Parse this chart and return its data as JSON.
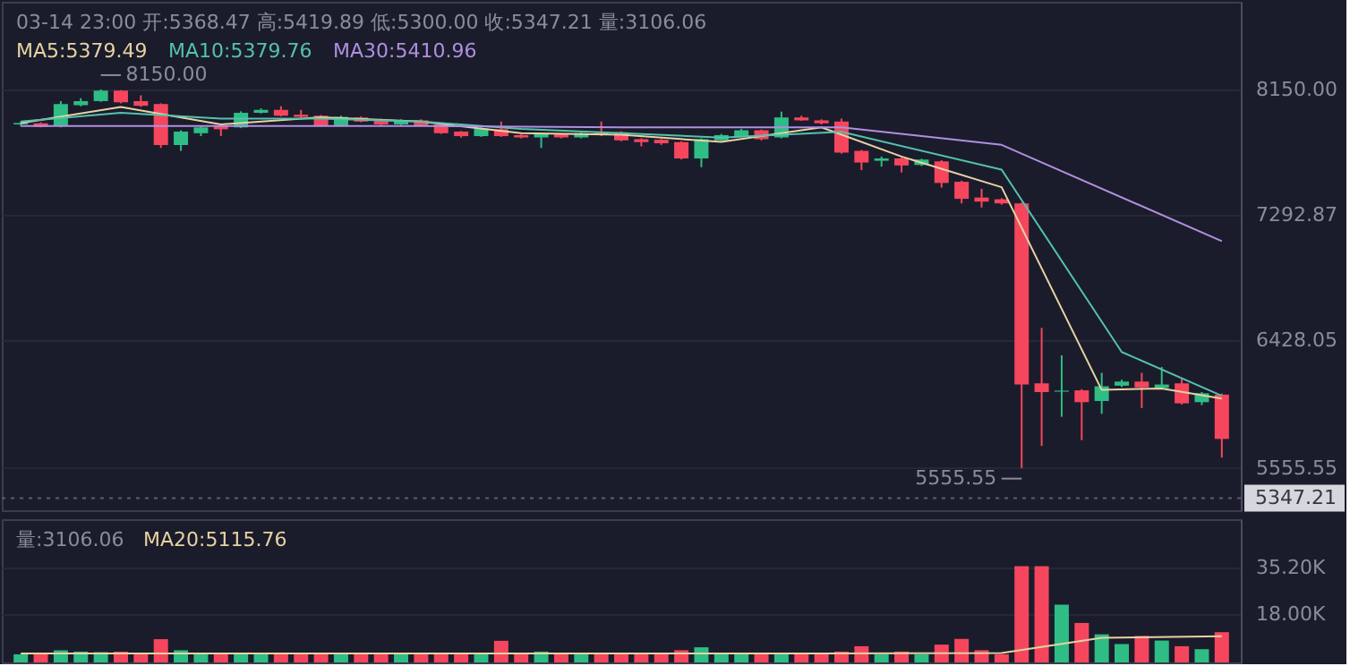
{
  "chart_data": [
    {
      "type": "candlestick",
      "categories": [
        null,
        null,
        null,
        null,
        null,
        null,
        null,
        null,
        null,
        null,
        null,
        null,
        null,
        null,
        null,
        null,
        null,
        null,
        null,
        null,
        null,
        null,
        null,
        null,
        null,
        null,
        null,
        null,
        null,
        null,
        null,
        null,
        null,
        null,
        null,
        null,
        null,
        null,
        null,
        null,
        null,
        null,
        null,
        null,
        null,
        null,
        null,
        null,
        null,
        null,
        null,
        null,
        null,
        null,
        null,
        null,
        null,
        null,
        null,
        null,
        null
      ],
      "ohlc": [
        [
          7910,
          7930,
          7900,
          7920
        ],
        [
          7918,
          7925,
          7890,
          7894
        ],
        [
          7898,
          8070,
          7890,
          8050
        ],
        [
          8042,
          8090,
          8035,
          8070
        ],
        [
          8070,
          8150,
          8065,
          8142
        ],
        [
          8142,
          8145,
          8055,
          8062
        ],
        [
          8070,
          8110,
          8030,
          8038
        ],
        [
          8050,
          8055,
          7749,
          7769
        ],
        [
          7769,
          7870,
          7729,
          7861
        ],
        [
          7850,
          7900,
          7830,
          7890
        ],
        [
          7900,
          7910,
          7830,
          7877
        ],
        [
          7890,
          8000,
          7885,
          7990
        ],
        [
          7990,
          8020,
          7985,
          8010
        ],
        [
          8010,
          8035,
          7965,
          7970
        ],
        [
          7977,
          8010,
          7955,
          7962
        ],
        [
          7970,
          7975,
          7895,
          7900
        ],
        [
          7900,
          7970,
          7895,
          7962
        ],
        [
          7958,
          7965,
          7925,
          7930
        ],
        [
          7942,
          7950,
          7905,
          7910
        ],
        [
          7910,
          7945,
          7905,
          7938
        ],
        [
          7938,
          7945,
          7895,
          7902
        ],
        [
          7910,
          7915,
          7845,
          7850
        ],
        [
          7861,
          7865,
          7820,
          7830
        ],
        [
          7830,
          7890,
          7825,
          7882
        ],
        [
          7877,
          7930,
          7825,
          7830
        ],
        [
          7837,
          7842,
          7815,
          7821
        ],
        [
          7821,
          7850,
          7749,
          7845
        ],
        [
          7845,
          7850,
          7815,
          7821
        ],
        [
          7821,
          7855,
          7815,
          7850
        ],
        [
          7853,
          7930,
          7830,
          7837
        ],
        [
          7857,
          7862,
          7795,
          7801
        ],
        [
          7809,
          7815,
          7760,
          7789
        ],
        [
          7805,
          7810,
          7770,
          7781
        ],
        [
          7789,
          7795,
          7670,
          7677
        ],
        [
          7677,
          7815,
          7617,
          7809
        ],
        [
          7801,
          7845,
          7795,
          7837
        ],
        [
          7830,
          7880,
          7825,
          7870
        ],
        [
          7870,
          7875,
          7800,
          7809
        ],
        [
          7821,
          7998,
          7815,
          7958
        ],
        [
          7958,
          7970,
          7935,
          7938
        ],
        [
          7938,
          7945,
          7910,
          7918
        ],
        [
          7930,
          7950,
          7710,
          7717
        ],
        [
          7729,
          7735,
          7597,
          7649
        ],
        [
          7661,
          7690,
          7621,
          7677
        ],
        [
          7677,
          7685,
          7581,
          7629
        ],
        [
          7633,
          7675,
          7625,
          7669
        ],
        [
          7657,
          7665,
          7477,
          7509
        ],
        [
          7517,
          7525,
          7369,
          7400
        ],
        [
          7409,
          7469,
          7341,
          7381
        ],
        [
          7397,
          7405,
          7360,
          7369
        ],
        [
          7369,
          7375,
          5555.55,
          6127
        ],
        [
          6135,
          6515,
          5706,
          6075
        ],
        [
          6078,
          6327,
          5906,
          6085
        ],
        [
          6087,
          6095,
          5746,
          6006
        ],
        [
          6014,
          6207,
          5926,
          6115
        ],
        [
          6119,
          6160,
          6110,
          6147
        ],
        [
          6147,
          6207,
          5966,
          6107
        ],
        [
          6103,
          6247,
          6095,
          6127
        ],
        [
          6135,
          6167,
          5990,
          5998
        ],
        [
          6006,
          6075,
          5986,
          6067
        ],
        [
          6058,
          6065,
          5626,
          5754
        ]
      ],
      "colors": [
        "#2ebd85",
        "#f6465d",
        "#2ebd85",
        "#2ebd85",
        "#2ebd85",
        "#f6465d",
        "#f6465d",
        "#f6465d",
        "#2ebd85",
        "#2ebd85",
        "#f6465d",
        "#2ebd85",
        "#2ebd85",
        "#f6465d",
        "#f6465d",
        "#f6465d",
        "#2ebd85",
        "#f6465d",
        "#f6465d",
        "#2ebd85",
        "#f6465d",
        "#f6465d",
        "#f6465d",
        "#2ebd85",
        "#f6465d",
        "#f6465d",
        "#2ebd85",
        "#f6465d",
        "#2ebd85",
        "#f6465d",
        "#f6465d",
        "#f6465d",
        "#f6465d",
        "#f6465d",
        "#2ebd85",
        "#2ebd85",
        "#2ebd85",
        "#f6465d",
        "#2ebd85",
        "#f6465d",
        "#f6465d",
        "#f6465d",
        "#f6465d",
        "#2ebd85",
        "#f6465d",
        "#2ebd85",
        "#f6465d",
        "#f6465d",
        "#f6465d",
        "#f6465d",
        "#f6465d",
        "#f6465d",
        "#2ebd85",
        "#f6465d",
        "#2ebd85",
        "#2ebd85",
        "#f6465d",
        "#2ebd85",
        "#f6465d",
        "#2ebd85",
        "#f6465d"
      ],
      "series": [
        {
          "name": "MA5:5379.49",
          "type": "line",
          "color": "#e6d3a3",
          "values": [
            7920,
            null,
            null,
            null,
            null,
            8030,
            null,
            null,
            null,
            null,
            7910,
            null,
            null,
            null,
            null,
            7960,
            null,
            null,
            null,
            null,
            7930,
            null,
            null,
            null,
            null,
            7850,
            null,
            null,
            null,
            null,
            7840,
            null,
            null,
            null,
            null,
            7790,
            null,
            null,
            null,
            null,
            7890,
            null,
            null,
            null,
            7690,
            null,
            null,
            null,
            null,
            7480,
            null,
            null,
            null,
            null,
            6090,
            null,
            null,
            6100,
            null,
            null,
            6030
          ]
        },
        {
          "name": "MA10:5379.76",
          "type": "line",
          "color": "#53c2ad",
          "values": [
            7930,
            null,
            null,
            null,
            null,
            7990,
            null,
            null,
            null,
            null,
            7950,
            null,
            null,
            null,
            null,
            7950,
            null,
            null,
            null,
            null,
            7930,
            null,
            null,
            null,
            null,
            7880,
            null,
            null,
            null,
            null,
            7850,
            null,
            null,
            null,
            null,
            7820,
            null,
            null,
            null,
            null,
            null,
            7860,
            null,
            null,
            null,
            null,
            null,
            null,
            null,
            7600,
            null,
            null,
            null,
            null,
            null,
            6350,
            null,
            null,
            null,
            null,
            6050
          ]
        },
        {
          "name": "MA30:5410.96",
          "type": "line",
          "color": "#b08fe0",
          "values": [
            7900,
            null,
            null,
            null,
            null,
            null,
            null,
            null,
            null,
            null,
            7900,
            null,
            null,
            null,
            null,
            null,
            null,
            null,
            null,
            null,
            7900,
            null,
            null,
            null,
            null,
            null,
            null,
            null,
            null,
            null,
            7890,
            null,
            null,
            null,
            null,
            null,
            null,
            null,
            null,
            null,
            null,
            7890,
            null,
            null,
            null,
            null,
            null,
            null,
            null,
            7770,
            null,
            null,
            null,
            null,
            null,
            null,
            null,
            null,
            null,
            null,
            7110
          ]
        }
      ],
      "ylim": [
        5265,
        8751
      ],
      "yticks": [
        {
          "value": 8150,
          "label": "8150.00"
        },
        {
          "value": 7292.87,
          "label": "7292.87"
        },
        {
          "value": 6428.05,
          "label": "6428.05"
        },
        {
          "value": 5555.55,
          "label": "5555.55"
        }
      ],
      "grid": "y",
      "annotations": [
        "03-14 23:00   开:5368.47   高:5419.89   低:5300.00   收:5347.21   量:3106.06",
        "8150.00",
        "5555.55"
      ],
      "ref_lines": [
        {
          "axis": "y",
          "value": 5347.21,
          "label": "5347.21"
        }
      ]
    },
    {
      "type": "bar",
      "categories": [
        null,
        null,
        null,
        null,
        null,
        null,
        null,
        null,
        null,
        null,
        null,
        null,
        null,
        null,
        null,
        null,
        null,
        null,
        null,
        null,
        null,
        null,
        null,
        null,
        null,
        null,
        null,
        null,
        null,
        null,
        null,
        null,
        null,
        null,
        null,
        null,
        null,
        null,
        null,
        null,
        null,
        null,
        null,
        null,
        null,
        null,
        null,
        null,
        null,
        null,
        null,
        null,
        null,
        null,
        null,
        null,
        null,
        null,
        null,
        null,
        null
      ],
      "values": [
        3000,
        3000,
        4500,
        4000,
        3800,
        4000,
        3000,
        8600,
        4500,
        3000,
        3000,
        3000,
        3000,
        3000,
        3000,
        3000,
        3000,
        3000,
        3000,
        3000,
        3000,
        3000,
        3000,
        3000,
        8000,
        3000,
        4000,
        3000,
        3000,
        3000,
        3000,
        3000,
        3500,
        4500,
        5600,
        3000,
        3000,
        3000,
        3000,
        3000,
        3000,
        4000,
        6000,
        3000,
        4000,
        3000,
        6600,
        8700,
        4500,
        3000,
        35600,
        35600,
        21400,
        14600,
        10400,
        6800,
        9800,
        8100,
        6000,
        4900,
        11200
      ],
      "colors": [
        "#2ebd85",
        "#f6465d",
        "#2ebd85",
        "#2ebd85",
        "#2ebd85",
        "#f6465d",
        "#f6465d",
        "#f6465d",
        "#2ebd85",
        "#2ebd85",
        "#f6465d",
        "#2ebd85",
        "#2ebd85",
        "#f6465d",
        "#f6465d",
        "#f6465d",
        "#2ebd85",
        "#f6465d",
        "#f6465d",
        "#2ebd85",
        "#f6465d",
        "#f6465d",
        "#f6465d",
        "#2ebd85",
        "#f6465d",
        "#f6465d",
        "#2ebd85",
        "#f6465d",
        "#2ebd85",
        "#f6465d",
        "#f6465d",
        "#f6465d",
        "#f6465d",
        "#f6465d",
        "#2ebd85",
        "#2ebd85",
        "#2ebd85",
        "#f6465d",
        "#2ebd85",
        "#f6465d",
        "#f6465d",
        "#f6465d",
        "#f6465d",
        "#2ebd85",
        "#f6465d",
        "#2ebd85",
        "#f6465d",
        "#f6465d",
        "#f6465d",
        "#f6465d",
        "#f6465d",
        "#f6465d",
        "#2ebd85",
        "#f6465d",
        "#2ebd85",
        "#2ebd85",
        "#f6465d",
        "#2ebd85",
        "#f6465d",
        "#2ebd85",
        "#f6465d"
      ],
      "series": [
        {
          "name": "MA20:5115.76",
          "type": "line",
          "color": "#e6d3a3",
          "values": [
            3300,
            null,
            null,
            null,
            null,
            null,
            null,
            null,
            null,
            null,
            null,
            null,
            null,
            null,
            null,
            null,
            null,
            null,
            null,
            null,
            3300,
            null,
            null,
            null,
            null,
            null,
            null,
            null,
            null,
            null,
            null,
            null,
            null,
            null,
            null,
            null,
            null,
            null,
            null,
            null,
            3300,
            null,
            null,
            null,
            null,
            null,
            null,
            null,
            null,
            3500,
            null,
            null,
            null,
            null,
            9100,
            null,
            null,
            null,
            null,
            null,
            9700
          ]
        }
      ],
      "ylim": [
        0,
        53000
      ],
      "yticks": [
        {
          "value": 35200,
          "label": "35.20K"
        },
        {
          "value": 18000,
          "label": "18.00K"
        }
      ],
      "grid": "y",
      "annotations": [
        "量:3106.06"
      ]
    }
  ]
}
